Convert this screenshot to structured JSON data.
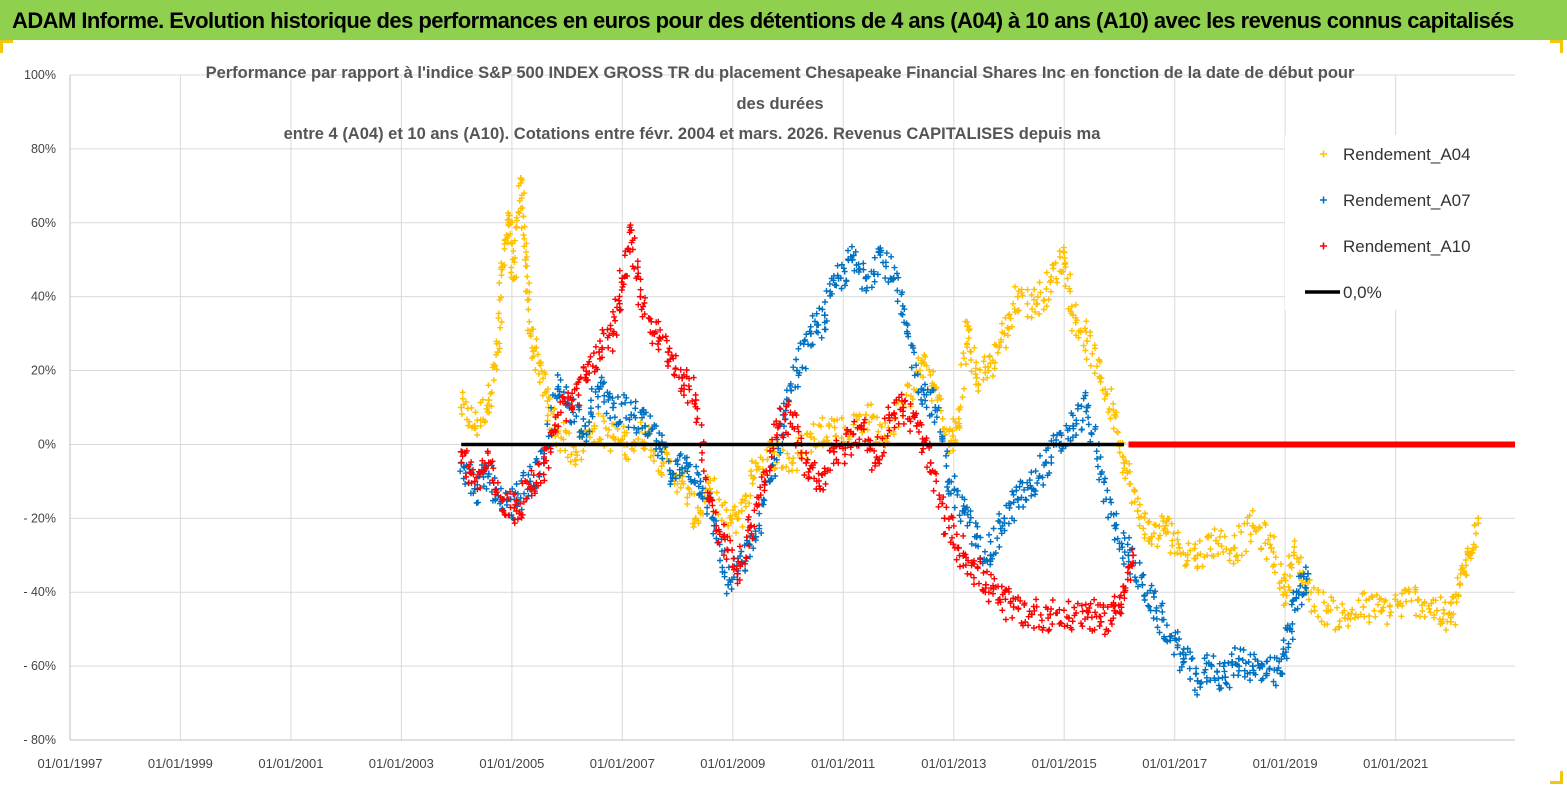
{
  "banner": {
    "title": "ADAM Informe. Evolution historique des performances en euros pour des détentions de 4 ans (A04) à 10 ans (A10) avec les revenus connus capitalisés"
  },
  "colors": {
    "banner_bg": "#8fd14f",
    "A04": "#ffc000",
    "A07": "#0070c0",
    "A10": "#ff0000",
    "zero_line": "#000000"
  },
  "chart_data": {
    "type": "scatter",
    "title_lines": [
      "Performance par rapport à l'indice S&P 500 INDEX GROSS TR  du placement Chesapeake Financial Shares Inc en fonction de la date de début pour",
      "des durées",
      "entre 4 (A04) et 10 ans (A10). Cotations entre févr. 2004 et mars. 2026. Revenus CAPITALISES depuis ma"
    ],
    "xlabel": "",
    "ylabel": "",
    "x_range": [
      "1997-01-01",
      "2023-03-01"
    ],
    "y_range": [
      -80,
      100
    ],
    "y_ticks": [
      {
        "value": 100,
        "label": "100%"
      },
      {
        "value": 80,
        "label": "80%"
      },
      {
        "value": 60,
        "label": "60%"
      },
      {
        "value": 40,
        "label": "40%"
      },
      {
        "value": 20,
        "label": "20%"
      },
      {
        "value": 0,
        "label": "0%"
      },
      {
        "value": -20,
        "label": "- 20%"
      },
      {
        "value": -40,
        "label": "- 40%"
      },
      {
        "value": -60,
        "label": "- 60%"
      },
      {
        "value": -80,
        "label": "- 80%"
      }
    ],
    "x_ticks": [
      "01/01/1997",
      "01/01/1999",
      "01/01/2001",
      "01/01/2003",
      "01/01/2005",
      "01/01/2007",
      "01/01/2009",
      "01/01/2011",
      "01/01/2013",
      "01/01/2015",
      "01/01/2017",
      "01/01/2019",
      "01/01/2021"
    ],
    "grid": true,
    "legend_position": "top-right",
    "series": [
      {
        "name": "Rendement_A04",
        "marker": "+",
        "color": "#ffc000",
        "points": [
          [
            "2004-02-01",
            10
          ],
          [
            "2004-05-01",
            5
          ],
          [
            "2004-08-01",
            12
          ],
          [
            "2004-10-01",
            25
          ],
          [
            "2004-11-01",
            48
          ],
          [
            "2004-12-15",
            62
          ],
          [
            "2005-01-15",
            45
          ],
          [
            "2005-03-01",
            72
          ],
          [
            "2005-04-01",
            50
          ],
          [
            "2005-05-01",
            30
          ],
          [
            "2005-07-01",
            22
          ],
          [
            "2005-09-01",
            10
          ],
          [
            "2005-11-01",
            3
          ],
          [
            "2006-03-01",
            -2
          ],
          [
            "2006-07-01",
            5
          ],
          [
            "2006-11-01",
            2
          ],
          [
            "2007-02-01",
            0
          ],
          [
            "2007-06-01",
            3
          ],
          [
            "2007-10-01",
            -5
          ],
          [
            "2008-02-01",
            -10
          ],
          [
            "2008-05-01",
            -20
          ],
          [
            "2008-08-01",
            -12
          ],
          [
            "2008-12-01",
            -22
          ],
          [
            "2009-03-01",
            -18
          ],
          [
            "2009-06-01",
            -5
          ],
          [
            "2009-10-01",
            -2
          ],
          [
            "2010-02-01",
            -5
          ],
          [
            "2010-06-01",
            2
          ],
          [
            "2010-10-01",
            5
          ],
          [
            "2011-02-01",
            3
          ],
          [
            "2011-06-01",
            8
          ],
          [
            "2011-10-01",
            2
          ],
          [
            "2012-02-01",
            10
          ],
          [
            "2012-06-01",
            22
          ],
          [
            "2012-09-01",
            15
          ],
          [
            "2012-12-01",
            0
          ],
          [
            "2013-02-01",
            5
          ],
          [
            "2013-04-01",
            32
          ],
          [
            "2013-06-01",
            18
          ],
          [
            "2013-09-01",
            22
          ],
          [
            "2013-12-01",
            30
          ],
          [
            "2014-03-01",
            40
          ],
          [
            "2014-07-01",
            38
          ],
          [
            "2014-10-01",
            44
          ],
          [
            "2015-01-01",
            52
          ],
          [
            "2015-03-01",
            35
          ],
          [
            "2015-06-01",
            28
          ],
          [
            "2015-09-01",
            18
          ],
          [
            "2015-12-01",
            8
          ],
          [
            "2016-02-01",
            -5
          ],
          [
            "2016-05-01",
            -18
          ],
          [
            "2016-08-01",
            -25
          ],
          [
            "2016-11-01",
            -22
          ],
          [
            "2017-02-01",
            -28
          ],
          [
            "2017-06-01",
            -30
          ],
          [
            "2017-10-01",
            -26
          ],
          [
            "2018-02-01",
            -28
          ],
          [
            "2018-06-01",
            -22
          ],
          [
            "2018-10-01",
            -28
          ],
          [
            "2019-01-01",
            -40
          ],
          [
            "2019-03-01",
            -30
          ],
          [
            "2019-06-01",
            -40
          ],
          [
            "2019-10-01",
            -45
          ],
          [
            "2020-02-01",
            -47
          ],
          [
            "2020-06-01",
            -44
          ],
          [
            "2020-10-01",
            -45
          ],
          [
            "2021-02-01",
            -43
          ],
          [
            "2021-06-01",
            -42
          ],
          [
            "2021-10-01",
            -45
          ],
          [
            "2022-01-01",
            -48
          ],
          [
            "2022-03-01",
            -38
          ],
          [
            "2022-05-01",
            -30
          ],
          [
            "2022-07-01",
            -20
          ]
        ]
      },
      {
        "name": "Rendement_A07",
        "marker": "+",
        "color": "#0070c0",
        "points": [
          [
            "2004-02-01",
            -5
          ],
          [
            "2004-05-01",
            -12
          ],
          [
            "2004-08-01",
            -8
          ],
          [
            "2004-11-01",
            -18
          ],
          [
            "2005-02-01",
            -15
          ],
          [
            "2005-05-01",
            -10
          ],
          [
            "2005-08-01",
            -5
          ],
          [
            "2005-11-01",
            15
          ],
          [
            "2006-02-01",
            10
          ],
          [
            "2006-05-01",
            5
          ],
          [
            "2006-08-01",
            15
          ],
          [
            "2006-11-01",
            10
          ],
          [
            "2007-03-01",
            8
          ],
          [
            "2007-06-01",
            5
          ],
          [
            "2007-09-01",
            0
          ],
          [
            "2007-12-01",
            -8
          ],
          [
            "2008-03-01",
            -5
          ],
          [
            "2008-06-01",
            -10
          ],
          [
            "2008-09-01",
            -22
          ],
          [
            "2008-12-01",
            -38
          ],
          [
            "2009-03-01",
            -32
          ],
          [
            "2009-06-01",
            -25
          ],
          [
            "2009-09-01",
            -10
          ],
          [
            "2009-12-01",
            8
          ],
          [
            "2010-03-01",
            20
          ],
          [
            "2010-06-01",
            30
          ],
          [
            "2010-09-01",
            35
          ],
          [
            "2010-12-01",
            45
          ],
          [
            "2011-03-01",
            50
          ],
          [
            "2011-06-01",
            45
          ],
          [
            "2011-09-01",
            52
          ],
          [
            "2011-12-01",
            45
          ],
          [
            "2012-03-01",
            30
          ],
          [
            "2012-06-01",
            15
          ],
          [
            "2012-09-01",
            10
          ],
          [
            "2012-12-01",
            -10
          ],
          [
            "2013-03-01",
            -18
          ],
          [
            "2013-06-01",
            -25
          ],
          [
            "2013-09-01",
            -30
          ],
          [
            "2013-12-01",
            -20
          ],
          [
            "2014-03-01",
            -15
          ],
          [
            "2014-06-01",
            -12
          ],
          [
            "2014-09-01",
            -5
          ],
          [
            "2014-12-01",
            0
          ],
          [
            "2015-03-01",
            5
          ],
          [
            "2015-06-01",
            10
          ],
          [
            "2015-09-01",
            -8
          ],
          [
            "2015-12-01",
            -22
          ],
          [
            "2016-03-01",
            -30
          ],
          [
            "2016-06-01",
            -38
          ],
          [
            "2016-09-01",
            -45
          ],
          [
            "2016-12-01",
            -52
          ],
          [
            "2017-03-01",
            -58
          ],
          [
            "2017-06-01",
            -64
          ],
          [
            "2017-09-01",
            -60
          ],
          [
            "2017-12-01",
            -63
          ],
          [
            "2018-03-01",
            -58
          ],
          [
            "2018-06-01",
            -60
          ],
          [
            "2018-09-01",
            -62
          ],
          [
            "2018-12-01",
            -62
          ],
          [
            "2019-02-01",
            -50
          ],
          [
            "2019-04-01",
            -40
          ],
          [
            "2019-06-01",
            -35
          ]
        ]
      },
      {
        "name": "Rendement_A10",
        "marker": "+",
        "color": "#ff0000",
        "points": [
          [
            "2004-02-01",
            -2
          ],
          [
            "2004-05-01",
            -10
          ],
          [
            "2004-08-01",
            -5
          ],
          [
            "2004-11-01",
            -15
          ],
          [
            "2005-02-01",
            -18
          ],
          [
            "2005-05-01",
            -12
          ],
          [
            "2005-08-01",
            -5
          ],
          [
            "2005-11-01",
            8
          ],
          [
            "2006-02-01",
            12
          ],
          [
            "2006-05-01",
            18
          ],
          [
            "2006-08-01",
            25
          ],
          [
            "2006-11-01",
            30
          ],
          [
            "2007-01-01",
            45
          ],
          [
            "2007-03-01",
            58
          ],
          [
            "2007-05-01",
            40
          ],
          [
            "2007-08-01",
            30
          ],
          [
            "2007-11-01",
            25
          ],
          [
            "2008-02-01",
            18
          ],
          [
            "2008-05-01",
            12
          ],
          [
            "2008-08-01",
            -15
          ],
          [
            "2008-11-01",
            -25
          ],
          [
            "2009-02-01",
            -35
          ],
          [
            "2009-05-01",
            -22
          ],
          [
            "2009-08-01",
            -10
          ],
          [
            "2009-11-01",
            5
          ],
          [
            "2010-02-01",
            8
          ],
          [
            "2010-05-01",
            -5
          ],
          [
            "2010-08-01",
            -12
          ],
          [
            "2010-11-01",
            -2
          ],
          [
            "2011-02-01",
            0
          ],
          [
            "2011-05-01",
            5
          ],
          [
            "2011-08-01",
            -5
          ],
          [
            "2011-11-01",
            8
          ],
          [
            "2012-02-01",
            10
          ],
          [
            "2012-05-01",
            5
          ],
          [
            "2012-08-01",
            -5
          ],
          [
            "2012-11-01",
            -20
          ],
          [
            "2013-02-01",
            -28
          ],
          [
            "2013-05-01",
            -32
          ],
          [
            "2013-08-01",
            -38
          ],
          [
            "2013-11-01",
            -42
          ],
          [
            "2014-02-01",
            -44
          ],
          [
            "2014-06-01",
            -46
          ],
          [
            "2014-10-01",
            -46
          ],
          [
            "2015-02-01",
            -47
          ],
          [
            "2015-06-01",
            -45
          ],
          [
            "2015-09-01",
            -48
          ],
          [
            "2015-12-01",
            -45
          ],
          [
            "2016-02-01",
            -40
          ],
          [
            "2016-04-01",
            -30
          ]
        ]
      },
      {
        "name": "0,0%",
        "marker": "line",
        "color": "#000000",
        "points": [
          [
            "2004-02-01",
            0
          ],
          [
            "2016-02-01",
            0
          ]
        ]
      }
    ]
  }
}
